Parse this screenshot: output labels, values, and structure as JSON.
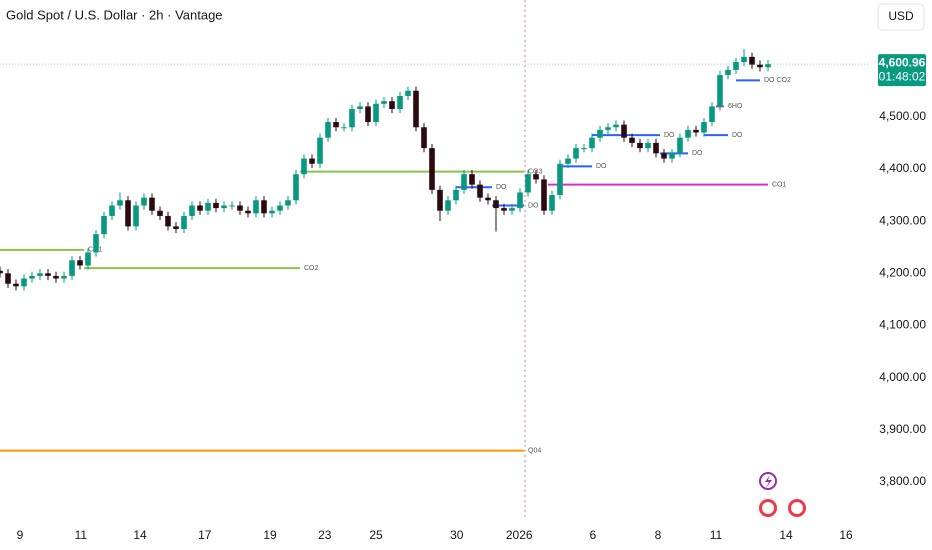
{
  "chart_data": {
    "type": "candlestick",
    "title": "Gold Spot / U.S. Dollar · 2h · Vantage",
    "currency": "USD",
    "up_color": "#089981",
    "down_color": "#2b0b10",
    "open": [
      4205,
      4200,
      4180,
      4175,
      4190,
      4195,
      4200,
      4195,
      4190,
      4195,
      4225,
      4215,
      4240,
      4275,
      4310,
      4330,
      4340,
      4290,
      4330,
      4345,
      4320,
      4310,
      4290,
      4285,
      4310,
      4330,
      4320,
      4335,
      4325,
      4330,
      4330,
      4320,
      4315,
      4340,
      4315,
      4320,
      4330,
      4340,
      4390,
      4420,
      4410,
      4460,
      4490,
      4480,
      4480,
      4515,
      4520,
      4490,
      4525,
      4530,
      4515,
      4540,
      4550,
      4480,
      4440,
      4360,
      4320,
      4340,
      4360,
      4390,
      4370,
      4345,
      4340,
      4325,
      4320,
      4325,
      4355,
      4390,
      4380,
      4320,
      4350,
      4410,
      4420,
      4440,
      4440,
      4460,
      4475,
      4480,
      4485,
      4460,
      4450,
      4440,
      4450,
      4430,
      4420,
      4430,
      4460,
      4475,
      4470,
      4490,
      4520,
      4580,
      4590,
      4605,
      4615,
      4600,
      4595
    ],
    "high": [
      4213,
      4208,
      4188,
      4198,
      4203,
      4208,
      4208,
      4203,
      4203,
      4233,
      4233,
      4248,
      4283,
      4318,
      4338,
      4355,
      4348,
      4338,
      4353,
      4353,
      4328,
      4318,
      4298,
      4318,
      4338,
      4338,
      4343,
      4343,
      4338,
      4338,
      4338,
      4328,
      4348,
      4348,
      4328,
      4338,
      4348,
      4398,
      4428,
      4428,
      4468,
      4498,
      4498,
      4488,
      4523,
      4528,
      4528,
      4533,
      4538,
      4538,
      4548,
      4558,
      4558,
      4488,
      4448,
      4368,
      4348,
      4368,
      4398,
      4398,
      4378,
      4353,
      4348,
      4333,
      4333,
      4363,
      4398,
      4398,
      4388,
      4358,
      4418,
      4428,
      4448,
      4448,
      4468,
      4483,
      4488,
      4493,
      4493,
      4468,
      4458,
      4458,
      4458,
      4438,
      4438,
      4468,
      4483,
      4483,
      4498,
      4528,
      4588,
      4598,
      4613,
      4630,
      4623,
      4608,
      4609
    ],
    "low": [
      4192,
      4172,
      4167,
      4167,
      4182,
      4187,
      4187,
      4182,
      4182,
      4187,
      4207,
      4207,
      4232,
      4267,
      4302,
      4322,
      4282,
      4282,
      4322,
      4312,
      4302,
      4282,
      4277,
      4277,
      4302,
      4312,
      4312,
      4317,
      4317,
      4322,
      4312,
      4307,
      4307,
      4307,
      4307,
      4312,
      4322,
      4332,
      4382,
      4402,
      4402,
      4452,
      4472,
      4472,
      4472,
      4507,
      4482,
      4482,
      4517,
      4507,
      4507,
      4532,
      4472,
      4432,
      4352,
      4300,
      4312,
      4332,
      4352,
      4362,
      4337,
      4332,
      4280,
      4312,
      4312,
      4317,
      4347,
      4372,
      4312,
      4312,
      4342,
      4402,
      4412,
      4432,
      4432,
      4452,
      4467,
      4472,
      4452,
      4442,
      4432,
      4432,
      4422,
      4412,
      4412,
      4422,
      4452,
      4462,
      4462,
      4482,
      4512,
      4572,
      4582,
      4597,
      4592,
      4587,
      4587
    ],
    "close": [
      4200,
      4180,
      4175,
      4190,
      4195,
      4200,
      4195,
      4190,
      4195,
      4225,
      4215,
      4240,
      4275,
      4310,
      4330,
      4340,
      4290,
      4330,
      4345,
      4320,
      4310,
      4290,
      4285,
      4310,
      4330,
      4320,
      4335,
      4325,
      4330,
      4330,
      4320,
      4315,
      4340,
      4315,
      4320,
      4330,
      4340,
      4390,
      4420,
      4410,
      4460,
      4490,
      4480,
      4480,
      4515,
      4520,
      4490,
      4525,
      4530,
      4515,
      4540,
      4550,
      4480,
      4440,
      4360,
      4320,
      4340,
      4360,
      4390,
      4370,
      4345,
      4340,
      4325,
      4320,
      4325,
      4355,
      4390,
      4380,
      4320,
      4350,
      4410,
      4420,
      4440,
      4440,
      4460,
      4475,
      4480,
      4485,
      4460,
      4450,
      4440,
      4450,
      4430,
      4420,
      4430,
      4460,
      4475,
      4470,
      4490,
      4520,
      4580,
      4590,
      4605,
      4615,
      4600,
      4595,
      4600.96
    ],
    "xlim": [
      0,
      108.5
    ],
    "ylim": [
      3727,
      4724
    ],
    "xticks": [
      {
        "value": 2.5,
        "label": "9"
      },
      {
        "value": 10.1,
        "label": "11"
      },
      {
        "value": 17.5,
        "label": "14"
      },
      {
        "value": 25.6,
        "label": "17"
      },
      {
        "value": 33.75,
        "label": "19"
      },
      {
        "value": 40.6,
        "label": "23"
      },
      {
        "value": 47,
        "label": "25"
      },
      {
        "value": 57.1,
        "label": "30"
      },
      {
        "value": 64.9,
        "label": "2026"
      },
      {
        "value": 74.1,
        "label": "6"
      },
      {
        "value": 82.25,
        "label": "8"
      },
      {
        "value": 89.5,
        "label": "11"
      },
      {
        "value": 98.25,
        "label": "14"
      },
      {
        "value": 105.75,
        "label": "16"
      }
    ],
    "yticks": [
      {
        "value": 4500,
        "label": "4,500.00"
      },
      {
        "value": 4400,
        "label": "4,400.00"
      },
      {
        "value": 4300,
        "label": "4,300.00"
      },
      {
        "value": 4200,
        "label": "4,200.00"
      },
      {
        "value": 4100,
        "label": "4,100.00"
      },
      {
        "value": 4000,
        "label": "4,000.00"
      },
      {
        "value": 3900,
        "label": "3,900.00"
      },
      {
        "value": 3800,
        "label": "3,800.00"
      }
    ],
    "last_price": {
      "value": 4600.96,
      "label": "4,600.96"
    },
    "countdown": "01:48:02",
    "levels": [
      {
        "value": 4245,
        "x0": 0,
        "x1": 10.5,
        "color": "#8bc34a",
        "label": "CO1"
      },
      {
        "value": 4210,
        "x0": 10.5,
        "x1": 37.5,
        "color": "#8bc34a",
        "label": "CO2"
      },
      {
        "value": 4395,
        "x0": 37.5,
        "x1": 65.5,
        "color": "#8bc34a",
        "label": "CO3"
      },
      {
        "value": 4370,
        "x0": 68.5,
        "x1": 96,
        "color": "#cc33cc",
        "label": "CO1"
      },
      {
        "value": 3860,
        "x0": 0,
        "x1": 65.5,
        "color": "#ff9800",
        "label": "Q04"
      },
      {
        "value": 4365,
        "x0": 57,
        "x1": 61.5,
        "color": "#2962ff",
        "label": "DO"
      },
      {
        "value": 4330,
        "x0": 61.5,
        "x1": 65.5,
        "color": "#2962ff",
        "label": "DO"
      },
      {
        "value": 4405,
        "x0": 70,
        "x1": 74,
        "color": "#2962ff",
        "label": "DO"
      },
      {
        "value": 4465,
        "x0": 74,
        "x1": 82.5,
        "color": "#2962ff",
        "label": "DO"
      },
      {
        "value": 4430,
        "x0": 82.5,
        "x1": 86,
        "color": "#2962ff",
        "label": "DO"
      },
      {
        "value": 4465,
        "x0": 88,
        "x1": 91,
        "color": "#2962ff",
        "label": "DO"
      },
      {
        "value": 4570,
        "x0": 92,
        "x1": 95,
        "color": "#2962ff",
        "label": "DO CO2"
      },
      {
        "value": 4520,
        "x0": 89.5,
        "x1": 90.5,
        "color": "#cc33cc",
        "label": "6HO"
      }
    ]
  }
}
